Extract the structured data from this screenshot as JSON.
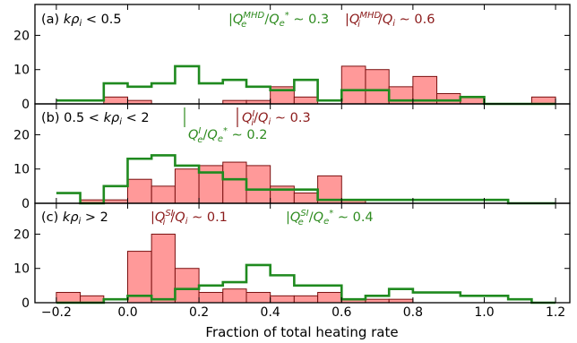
{
  "chart_data": {
    "type": "histogram",
    "xlabel": "Fraction of total heating rate",
    "xlim": [
      -0.26,
      1.24
    ],
    "xticks": [
      -0.2,
      0.0,
      0.2,
      0.4,
      0.6,
      0.8,
      1.0,
      1.2
    ],
    "xtick_labels": [
      "−0.2",
      "0.0",
      "0.2",
      "0.4",
      "0.6",
      "0.8",
      "1.0",
      "1.2"
    ],
    "bin_edges": [
      -0.2,
      -0.133,
      -0.067,
      0.0,
      0.067,
      0.133,
      0.2,
      0.267,
      0.333,
      0.4,
      0.467,
      0.533,
      0.6,
      0.667,
      0.733,
      0.8,
      0.867,
      0.933,
      1.0,
      1.067,
      1.133,
      1.2
    ],
    "colors": {
      "ion": "#ff9999",
      "ion_edge": "#7a1010",
      "electron": "#1f8a1f",
      "ion_text": "#8b1a1a",
      "electron_text": "#2e8b1f"
    },
    "panels": [
      {
        "label": "(a) kρᵢ < 0.5",
        "yticks": [
          0,
          10,
          20
        ],
        "ylim": [
          0,
          29
        ],
        "series": [
          {
            "name": "ion",
            "kind": "filled",
            "values": [
              0,
              0,
              2,
              1,
              0,
              0,
              0,
              1,
              1,
              5,
              2,
              0,
              11,
              10,
              5,
              8,
              3,
              2,
              0,
              0,
              2
            ]
          },
          {
            "name": "electron",
            "kind": "step",
            "values": [
              1,
              1,
              6,
              5,
              6,
              11,
              6,
              7,
              5,
              4,
              7,
              1,
              4,
              4,
              1,
              1,
              1,
              2,
              0,
              0,
              0
            ]
          }
        ],
        "annotations": [
          {
            "series": "electron",
            "text": "|Q_e^{MHD}/Q_e^* ∼ 0.3",
            "line_x": 0.33
          },
          {
            "series": "ion",
            "text": "|Q_i^{MHD}/Q_i ∼ 0.6",
            "line_x": 0.6
          }
        ]
      },
      {
        "label": "(b) 0.5 < kρᵢ < 2",
        "yticks": [
          0,
          10,
          20
        ],
        "ylim": [
          0,
          29
        ],
        "series": [
          {
            "name": "ion",
            "kind": "filled",
            "values": [
              0,
              1,
              1,
              7,
              5,
              10,
              11,
              12,
              11,
              5,
              3,
              8,
              1,
              0,
              0,
              0,
              0,
              0,
              0,
              0,
              0
            ]
          },
          {
            "name": "electron",
            "kind": "step",
            "values": [
              3,
              0,
              5,
              13,
              14,
              11,
              9,
              7,
              4,
              4,
              4,
              1,
              1,
              1,
              1,
              1,
              1,
              1,
              1,
              0,
              0
            ]
          }
        ],
        "annotations": [
          {
            "series": "electron",
            "text": "Q_e^I/Q_e^* ∼ 0.2",
            "line_x": 0.2
          },
          {
            "series": "ion",
            "text": "Q_i^I/Q_i ∼ 0.3",
            "line_x": 0.3
          }
        ]
      },
      {
        "label": "(c) kρᵢ > 2",
        "yticks": [
          0,
          10,
          20
        ],
        "ylim": [
          0,
          29
        ],
        "series": [
          {
            "name": "ion",
            "kind": "filled",
            "values": [
              3,
              2,
              0,
              15,
              20,
              10,
              3,
              4,
              3,
              2,
              2,
              3,
              1,
              1,
              1,
              0,
              0,
              0,
              0,
              0,
              0
            ]
          },
          {
            "name": "electron",
            "kind": "step",
            "values": [
              0,
              0,
              1,
              2,
              1,
              4,
              5,
              6,
              11,
              8,
              5,
              5,
              1,
              2,
              4,
              3,
              3,
              2,
              2,
              1,
              0
            ]
          }
        ],
        "annotations": [
          {
            "series": "ion",
            "text": "|Q_i^{SI}/Q_i ∼ 0.1",
            "line_x": 0.1
          },
          {
            "series": "electron",
            "text": "|Q_e^{SI}/Q_e^* ∼ 0.4",
            "line_x": 0.4
          }
        ]
      }
    ]
  },
  "panel_titles": [
    {
      "prefix": "(a) ",
      "k": "k",
      "rho": "ρ",
      "sub": "i",
      "rest": " < 0.5"
    },
    {
      "prefix": "(b) 0.5 < ",
      "k": "k",
      "rho": "ρ",
      "sub": "i",
      "rest": " < 2"
    },
    {
      "prefix": "(c) ",
      "k": "k",
      "rho": "ρ",
      "sub": "i",
      "rest": " > 2"
    }
  ],
  "annotation_text": {
    "a_e": {
      "bar": "|",
      "Q": "Q",
      "sub1": "e",
      "sup1": "MHD",
      "slash": "/",
      "Q2": "Q",
      "sub2": "e",
      "sup2": "*",
      "tail": " ∼ 0.3"
    },
    "a_i": {
      "bar": "|",
      "Q": "Q",
      "sub1": "i",
      "sup1": "MHD",
      "slash": "/",
      "Q2": "Q",
      "sub2": "i",
      "sup2": "",
      "tail": " ∼ 0.6"
    },
    "b_e": {
      "bar": "",
      "Q": "Q",
      "sub1": "e",
      "sup1": "I",
      "slash": "/",
      "Q2": "Q",
      "sub2": "e",
      "sup2": "*",
      "tail": " ∼ 0.2"
    },
    "b_i": {
      "bar": "",
      "Q": "Q",
      "sub1": "i",
      "sup1": "I",
      "slash": "/",
      "Q2": "Q",
      "sub2": "i",
      "sup2": "",
      "tail": " ∼ 0.3"
    },
    "c_i": {
      "bar": "|",
      "Q": "Q",
      "sub1": "i",
      "sup1": "SI",
      "slash": "/",
      "Q2": "Q",
      "sub2": "i",
      "sup2": "",
      "tail": " ∼ 0.1"
    },
    "c_e": {
      "bar": "|",
      "Q": "Q",
      "sub1": "e",
      "sup1": "SI",
      "slash": "/",
      "Q2": "Q",
      "sub2": "e",
      "sup2": "*",
      "tail": " ∼ 0.4"
    }
  }
}
